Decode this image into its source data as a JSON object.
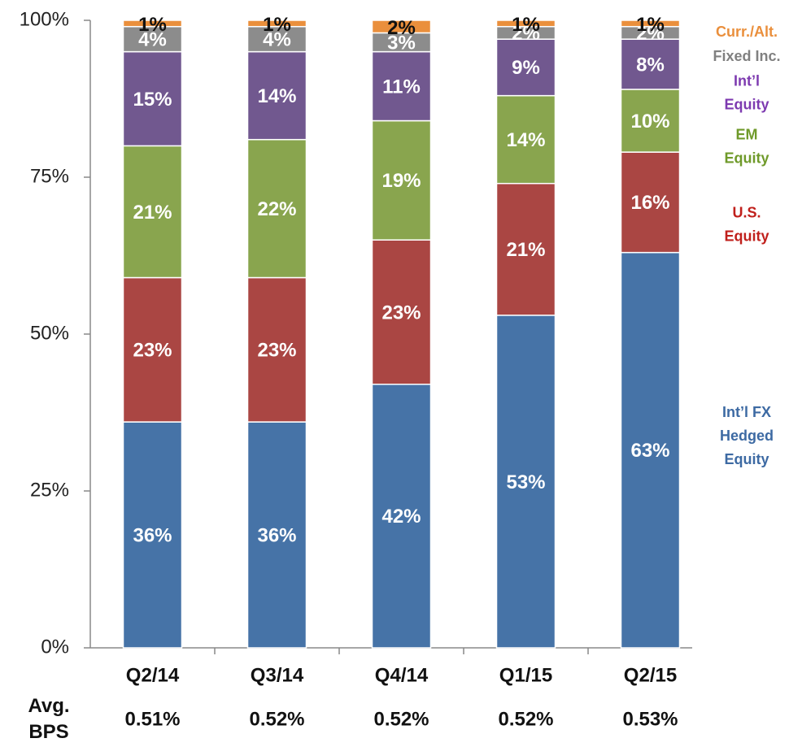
{
  "chart_data": {
    "type": "stacked_bar",
    "categories": [
      "Q2/14",
      "Q3/14",
      "Q4/14",
      "Q1/15",
      "Q2/15"
    ],
    "series": [
      {
        "name": "Int’l FX Hedged Equity",
        "color": "#4673a7",
        "values": [
          36,
          36,
          42,
          53,
          63
        ],
        "value_labels": [
          "36%",
          "36%",
          "42%",
          "53%",
          "63%"
        ]
      },
      {
        "name": "U.S. Equity",
        "color": "#aa4643",
        "values": [
          23,
          23,
          23,
          21,
          16
        ],
        "value_labels": [
          "23%",
          "23%",
          "23%",
          "21%",
          "16%"
        ]
      },
      {
        "name": "EM Equity",
        "color": "#89a54e",
        "values": [
          21,
          22,
          19,
          14,
          10
        ],
        "value_labels": [
          "21%",
          "22%",
          "19%",
          "14%",
          "10%"
        ]
      },
      {
        "name": "Int’l Equity",
        "color": "#71588f",
        "values": [
          15,
          14,
          11,
          9,
          8
        ],
        "value_labels": [
          "15%",
          "14%",
          "11%",
          "9%",
          "8%"
        ]
      },
      {
        "name": "Fixed Inc.",
        "color": "#8c8c8c",
        "values": [
          4,
          4,
          3,
          2,
          2
        ],
        "value_labels": [
          "4%",
          "4%",
          "3%",
          "2%",
          "2%"
        ]
      },
      {
        "name": "Curr./Alt.",
        "color": "#ea8f3c",
        "values": [
          1,
          1,
          2,
          1,
          1
        ],
        "value_labels": [
          "1%",
          "1%",
          "2%",
          "1%",
          "1%"
        ]
      }
    ],
    "ylim": [
      0,
      100
    ],
    "yticks": [
      {
        "value": 0,
        "label": "0%"
      },
      {
        "value": 25,
        "label": "25%"
      },
      {
        "value": 50,
        "label": "50%"
      },
      {
        "value": 75,
        "label": "75%"
      },
      {
        "value": 100,
        "label": "100%"
      }
    ],
    "avg_bps": {
      "label": "Avg. BPS",
      "values": [
        0.51,
        0.52,
        0.52,
        0.52,
        0.53
      ],
      "value_labels": [
        "0.51%",
        "0.52%",
        "0.52%",
        "0.52%",
        "0.53%"
      ]
    }
  }
}
